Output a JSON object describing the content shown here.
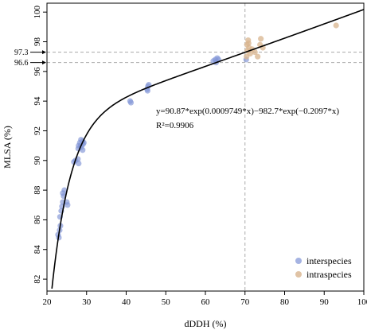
{
  "chart_data": {
    "type": "scatter",
    "xlabel": "dDDH (%)",
    "ylabel": "MLSA (%)",
    "xlim": [
      20,
      100
    ],
    "ylim": [
      81.2,
      100.6
    ],
    "x_ticks": [
      20,
      30,
      40,
      50,
      60,
      70,
      80,
      90,
      100
    ],
    "y_ticks": [
      82,
      84,
      86,
      88,
      90,
      92,
      94,
      96,
      98,
      100
    ],
    "grid": false,
    "legend_placement": "bottom-right",
    "fit_equation": "y=90.87*exp(0.0009749*x)−982.7*exp(−0.2097*x)",
    "fit_r2": "R²=0.9906",
    "fit_params": {
      "a": 90.87,
      "b": 0.0009749,
      "c": 982.7,
      "d": 0.2097
    },
    "reference_lines": {
      "vertical_x": 70,
      "horizontal": [
        {
          "y": 97.3,
          "label": "97.3"
        },
        {
          "y": 96.6,
          "label": "96.6"
        }
      ]
    },
    "series": [
      {
        "name": "interspecies",
        "color": "#7f93d6",
        "points": [
          [
            22.8,
            85.0
          ],
          [
            23.0,
            84.8
          ],
          [
            23.2,
            85.3
          ],
          [
            23.4,
            85.6
          ],
          [
            23.3,
            86.2
          ],
          [
            23.6,
            86.6
          ],
          [
            23.8,
            86.9
          ],
          [
            24.0,
            87.2
          ],
          [
            24.2,
            87.6
          ],
          [
            24.4,
            88.0
          ],
          [
            24.0,
            87.8
          ],
          [
            25.2,
            87.0
          ],
          [
            25.0,
            87.2
          ],
          [
            26.8,
            89.9
          ],
          [
            27.2,
            90.0
          ],
          [
            27.8,
            90.1
          ],
          [
            28.0,
            89.8
          ],
          [
            27.9,
            90.8
          ],
          [
            28.0,
            91.0
          ],
          [
            28.3,
            91.2
          ],
          [
            28.5,
            91.0
          ],
          [
            28.7,
            90.9
          ],
          [
            29.0,
            91.3
          ],
          [
            29.1,
            91.1
          ],
          [
            29.3,
            91.2
          ],
          [
            28.6,
            91.4
          ],
          [
            29.0,
            90.7
          ],
          [
            41.0,
            94.0
          ],
          [
            41.2,
            93.9
          ],
          [
            45.3,
            94.8
          ],
          [
            45.5,
            95.0
          ],
          [
            45.7,
            95.1
          ],
          [
            45.4,
            94.7
          ],
          [
            62.0,
            96.7
          ],
          [
            62.5,
            96.8
          ],
          [
            63.0,
            96.9
          ],
          [
            62.7,
            96.6
          ],
          [
            63.3,
            96.8
          ],
          [
            70.3,
            96.8
          ]
        ]
      },
      {
        "name": "intraspecies",
        "color": "#d8b48e",
        "points": [
          [
            70.5,
            97.8
          ],
          [
            70.8,
            98.1
          ],
          [
            70.6,
            97.4
          ],
          [
            71.0,
            97.6
          ],
          [
            71.3,
            97.2
          ],
          [
            70.4,
            97.0
          ],
          [
            71.8,
            97.5
          ],
          [
            72.5,
            97.3
          ],
          [
            73.2,
            97.0
          ],
          [
            73.8,
            97.8
          ],
          [
            74.0,
            98.2
          ],
          [
            74.5,
            97.6
          ],
          [
            70.9,
            97.9
          ],
          [
            93.0,
            99.1
          ]
        ]
      }
    ]
  }
}
